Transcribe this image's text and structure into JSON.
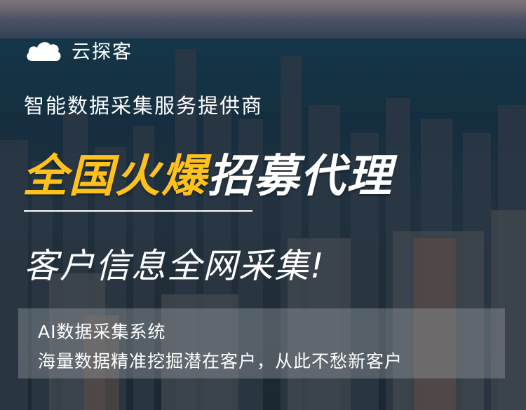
{
  "brand": {
    "name": "云探客",
    "logo_icon": "cloud-icon"
  },
  "tagline": "智能数据采集服务提供商",
  "headline": {
    "highlight": "全国火爆",
    "rest": "招募代理"
  },
  "subheadline": "客户信息全网采集!",
  "info": {
    "line1": "AI数据采集系统",
    "line2": "海量数据精准挖掘潜在客户，从此不愁新客户"
  },
  "colors": {
    "accent": "#ffc21c",
    "text": "#ffffff"
  }
}
